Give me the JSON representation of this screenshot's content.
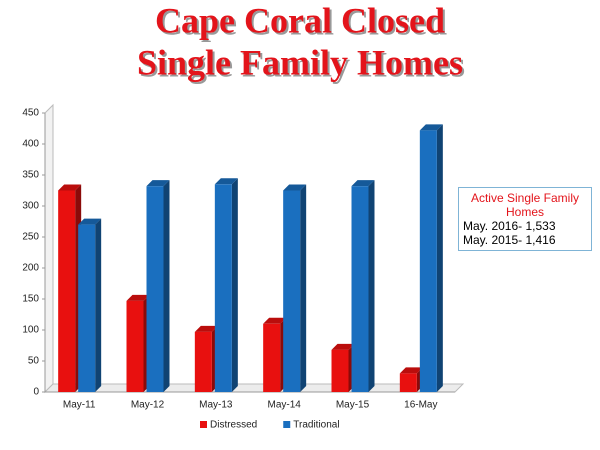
{
  "chart_data": {
    "type": "bar",
    "title": [
      "Cape Coral Closed",
      "Single Family Homes"
    ],
    "categories": [
      "May-11",
      "May-12",
      "May-13",
      "May-14",
      "May-15",
      "16-May"
    ],
    "series": [
      {
        "name": "Distressed",
        "color": "#e8100f",
        "values": [
          325,
          147,
          97,
          110,
          68,
          30
        ]
      },
      {
        "name": "Traditional",
        "color": "#1a6fbf",
        "values": [
          270,
          332,
          335,
          325,
          332,
          422
        ]
      }
    ],
    "ylim": [
      0,
      450
    ],
    "yticks": [
      0,
      50,
      100,
      150,
      200,
      250,
      300,
      350,
      400,
      450
    ],
    "grid": false,
    "legend": "bottom",
    "annotation": {
      "title": "Active Single Family Homes",
      "lines": [
        "May. 2016- 1,533",
        "May. 2015- 1,416"
      ]
    }
  }
}
